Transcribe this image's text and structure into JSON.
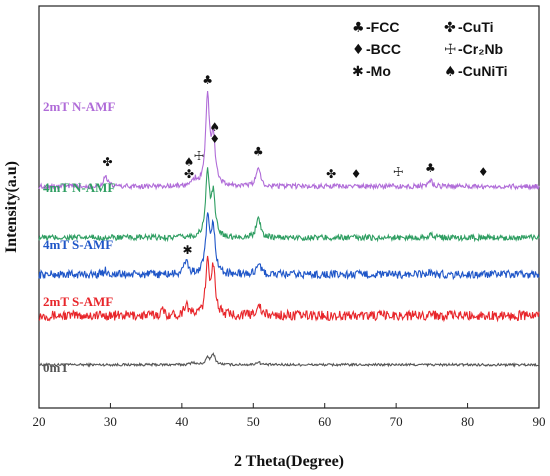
{
  "chart_data": {
    "type": "line",
    "title": "",
    "xlabel": "2 Theta(Degree)",
    "ylabel": "Intensity(a.u)",
    "xlim": [
      20,
      90
    ],
    "x_ticks": [
      20,
      30,
      40,
      50,
      60,
      70,
      80,
      90
    ],
    "y_ticks_shown": false,
    "grid": false,
    "legend_placement": "top-right",
    "legend": [
      {
        "symbol": "♣",
        "name": "-FCC"
      },
      {
        "symbol": "✤",
        "name": "-CuTi"
      },
      {
        "symbol": "♦",
        "name": "-BCC"
      },
      {
        "symbol": "☩",
        "name": "-Cr₂Nb"
      },
      {
        "symbol": "✱",
        "name": "-Mo"
      },
      {
        "symbol": "♠",
        "name": "-CuNiTi"
      }
    ],
    "series": [
      {
        "name": "0mT",
        "color": "#555555",
        "baseline": 0.25,
        "noise": 0.03,
        "peaks": [
          [
            41.5,
            0.06
          ],
          [
            43.6,
            0.15
          ],
          [
            44.4,
            0.25
          ],
          [
            50.7,
            0.07
          ]
        ]
      },
      {
        "name": "2mT S-AMF",
        "color": "#e8262b",
        "baseline": 1.45,
        "noise": 0.12,
        "peaks": [
          [
            37.3,
            0.12
          ],
          [
            40.6,
            0.3
          ],
          [
            43.6,
            1.2
          ],
          [
            44.4,
            1.15
          ],
          [
            50.7,
            0.3
          ],
          [
            74.8,
            0.06
          ]
        ]
      },
      {
        "name": "4mT S-AMF",
        "color": "#1f56c8",
        "baseline": 2.45,
        "noise": 0.1,
        "peaks": [
          [
            29.3,
            0.1
          ],
          [
            40.6,
            0.35
          ],
          [
            43.6,
            1.3
          ],
          [
            44.4,
            1.1
          ],
          [
            50.7,
            0.3
          ],
          [
            74.8,
            0.06
          ]
        ]
      },
      {
        "name": "4mT N-AMF",
        "color": "#2f9e62",
        "baseline": 3.35,
        "noise": 0.07,
        "peaks": [
          [
            43.6,
            1.55
          ],
          [
            44.4,
            1.0
          ],
          [
            50.7,
            0.55
          ],
          [
            74.8,
            0.1
          ]
        ]
      },
      {
        "name": "2mT N-AMF",
        "color": "#b06cd8",
        "baseline": 4.6,
        "noise": 0.06,
        "peaks": [
          [
            29.3,
            0.25
          ],
          [
            41.8,
            0.15
          ],
          [
            43.6,
            2.15
          ],
          [
            44.4,
            1.15
          ],
          [
            50.7,
            0.5
          ],
          [
            74.8,
            0.15
          ]
        ]
      }
    ],
    "annotations": [
      {
        "x": 43.6,
        "level": 7.1,
        "symbols": [
          "♣"
        ]
      },
      {
        "x": 44.6,
        "level": 5.95,
        "symbols": [
          "♠",
          "♦"
        ]
      },
      {
        "x": 29.6,
        "level": 5.1,
        "symbols": [
          "✤"
        ]
      },
      {
        "x": 41.0,
        "level": 5.1,
        "symbols": [
          "♠",
          "✤"
        ]
      },
      {
        "x": 42.4,
        "level": 5.25,
        "symbols": [
          "☩"
        ]
      },
      {
        "x": 50.7,
        "level": 5.35,
        "symbols": [
          "♣"
        ]
      },
      {
        "x": 60.9,
        "level": 4.8,
        "symbols": [
          "✤"
        ]
      },
      {
        "x": 64.4,
        "level": 4.8,
        "symbols": [
          "♦"
        ]
      },
      {
        "x": 70.3,
        "level": 4.85,
        "symbols": [
          "☩"
        ]
      },
      {
        "x": 74.8,
        "level": 4.95,
        "symbols": [
          "♣"
        ]
      },
      {
        "x": 82.2,
        "level": 4.85,
        "symbols": [
          "♦"
        ]
      },
      {
        "x": 40.8,
        "level": 2.95,
        "symbols": [
          "✱"
        ]
      }
    ]
  }
}
